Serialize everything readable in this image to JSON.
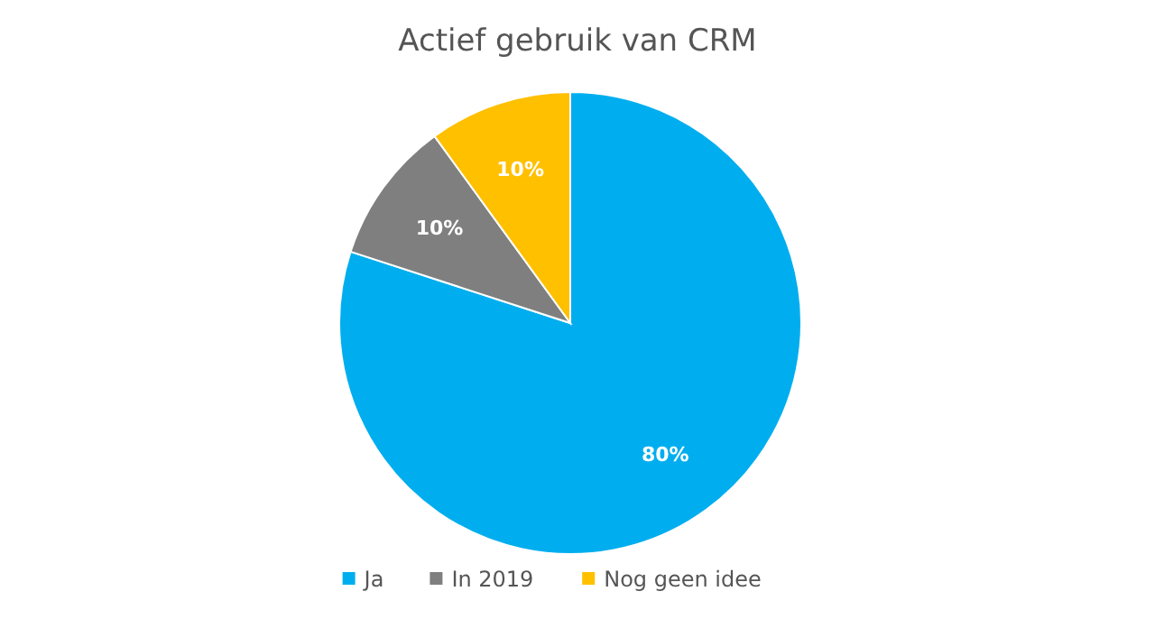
{
  "chart_data": {
    "type": "pie",
    "title": "Actief gebruik van CRM",
    "categories": [
      "Ja",
      "In 2019",
      "Nog geen idee"
    ],
    "values": [
      80,
      10,
      10
    ],
    "colors": [
      "#00aeef",
      "#7f7f7f",
      "#ffc000"
    ],
    "value_labels": [
      "80%",
      "10%",
      "10%"
    ],
    "legend": "bottom"
  }
}
